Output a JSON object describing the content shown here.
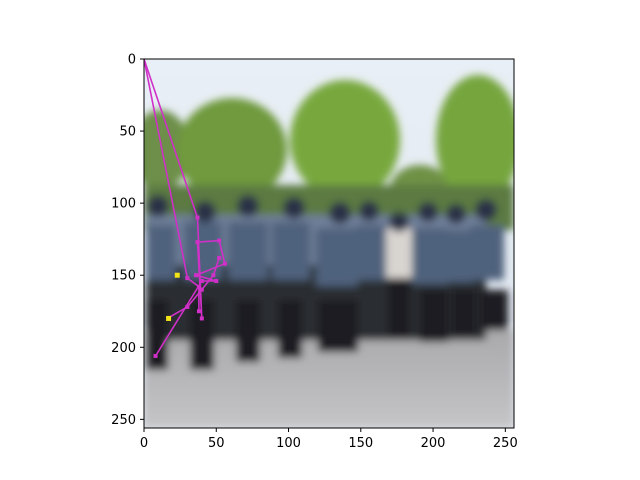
{
  "chart_data": {
    "type": "scatter",
    "title": "",
    "xlabel": "",
    "ylabel": "",
    "xlim": [
      0,
      256
    ],
    "ylim": [
      256,
      0
    ],
    "grid": false,
    "background_image": "blurred-photo-of-uniformed-officers-standing-in-a-row-before-green-trees-on-pavement",
    "x_ticks": [
      {
        "value": 0,
        "label": "0"
      },
      {
        "value": 50,
        "label": "50"
      },
      {
        "value": 100,
        "label": "100"
      },
      {
        "value": 150,
        "label": "150"
      },
      {
        "value": 200,
        "label": "200"
      },
      {
        "value": 250,
        "label": "250"
      }
    ],
    "y_ticks": [
      {
        "value": 0,
        "label": "0"
      },
      {
        "value": 50,
        "label": "50"
      },
      {
        "value": 100,
        "label": "100"
      },
      {
        "value": 150,
        "label": "150"
      },
      {
        "value": 200,
        "label": "200"
      },
      {
        "value": 250,
        "label": "250"
      }
    ],
    "series": [
      {
        "color": "#d030c8",
        "points": [
          [
            0,
            0
          ],
          [
            37,
            110
          ],
          [
            40,
            180
          ],
          [
            37,
            127
          ],
          [
            52,
            126
          ],
          [
            56,
            142
          ],
          [
            36,
            150
          ],
          [
            50,
            154
          ],
          [
            40,
            154
          ],
          [
            8,
            206
          ]
        ]
      },
      {
        "color": "#d030c8",
        "points": [
          [
            0,
            0
          ],
          [
            30,
            152
          ],
          [
            38,
            158
          ],
          [
            38,
            175
          ]
        ]
      },
      {
        "color": "#d030c8",
        "points": [
          [
            16,
            180
          ],
          [
            30,
            172
          ],
          [
            40,
            160
          ],
          [
            48,
            150
          ],
          [
            52,
            138
          ]
        ]
      }
    ],
    "markers": [
      {
        "x": 23,
        "y": 150,
        "color": "#f2e418"
      },
      {
        "x": 17,
        "y": 180,
        "color": "#f2e418"
      }
    ]
  }
}
